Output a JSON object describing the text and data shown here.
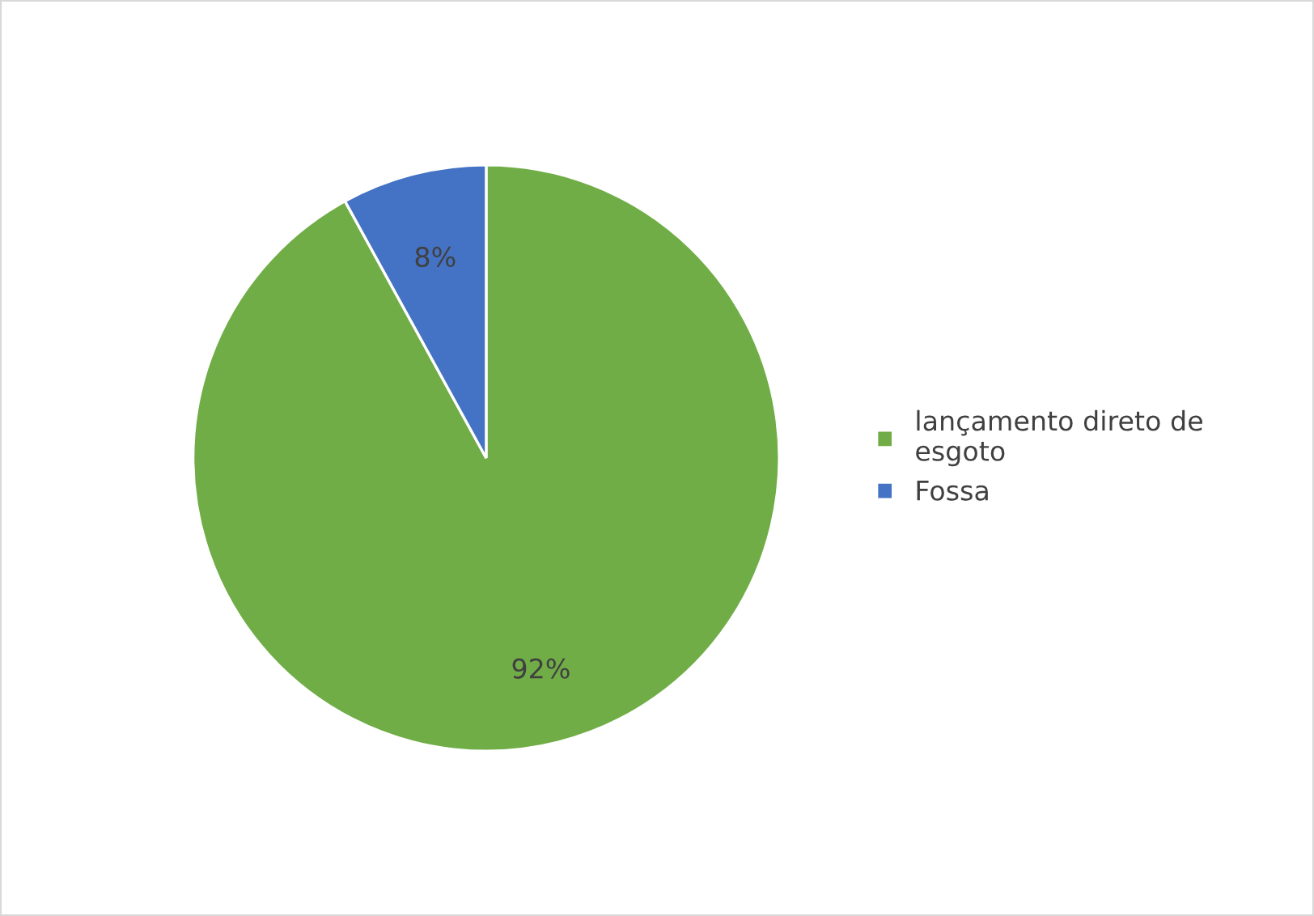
{
  "chart_data": {
    "type": "pie",
    "categories": [
      "lançamento direto de esgoto",
      "Fossa"
    ],
    "values": [
      92,
      8
    ],
    "colors": [
      "#70ad47",
      "#4472c4"
    ],
    "value_labels": [
      "92%",
      "8%"
    ],
    "legend": "right"
  }
}
